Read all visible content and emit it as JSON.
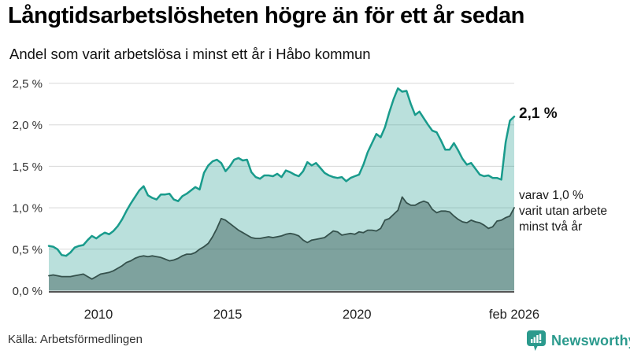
{
  "header": {
    "title": "Långtidsarbetslösheten högre än för ett år sedan",
    "subtitle": "Andel som varit arbetslösa i minst ett år i Håbo kommun"
  },
  "annotations": {
    "end_value_label": "2,1 %",
    "secondary_label_lines": [
      "varav 1,0 %",
      "varit utan arbete",
      "minst två år"
    ]
  },
  "footer": {
    "source": "Källa: Arbetsförmedlingen",
    "brand": "Newsworthy",
    "brand_color": "#2b9a8d"
  },
  "chart_data": {
    "type": "area",
    "title": "Långtidsarbetslösheten högre än för ett år sedan",
    "subtitle": "Andel som varit arbetslösa i minst ett år i Håbo kommun",
    "xlabel": "",
    "ylabel": "",
    "x_unit": "decimal-year, monthly series sampled every 2 months",
    "y_unit": "percent",
    "xlim": [
      2008.083,
      2026.083
    ],
    "ylim": [
      0,
      2.5
    ],
    "grid": "horizontal",
    "grid_color": "#d8d8d8",
    "axis_line_color": "#555555",
    "y_ticks": [
      {
        "value": 0.0,
        "label": "0,0 %"
      },
      {
        "value": 0.5,
        "label": "0,5 %"
      },
      {
        "value": 1.0,
        "label": "1,0 %"
      },
      {
        "value": 1.5,
        "label": "1,5 %"
      },
      {
        "value": 2.0,
        "label": "2,0 %"
      },
      {
        "value": 2.5,
        "label": "2,5 %"
      }
    ],
    "x_ticks": [
      {
        "value": 2010,
        "label": "2010"
      },
      {
        "value": 2015,
        "label": "2015"
      },
      {
        "value": 2020,
        "label": "2020"
      },
      {
        "value": 2026.083,
        "label": "feb 2026"
      }
    ],
    "series": [
      {
        "id": "arbetslosa-minst-ett-ar",
        "name": "Andel som varit arbetslösa i minst ett år",
        "color": "#199b8c",
        "fill": "rgba(26,153,139,0.30)",
        "line_width": 2.5,
        "end_label": "2,1 %",
        "values": [
          0.54,
          0.53,
          0.5,
          0.43,
          0.42,
          0.46,
          0.52,
          0.54,
          0.55,
          0.61,
          0.66,
          0.63,
          0.67,
          0.7,
          0.68,
          0.72,
          0.78,
          0.86,
          0.96,
          1.05,
          1.13,
          1.21,
          1.26,
          1.15,
          1.12,
          1.1,
          1.16,
          1.16,
          1.17,
          1.1,
          1.08,
          1.14,
          1.17,
          1.21,
          1.25,
          1.22,
          1.42,
          1.51,
          1.56,
          1.58,
          1.54,
          1.44,
          1.5,
          1.58,
          1.6,
          1.57,
          1.58,
          1.43,
          1.37,
          1.35,
          1.39,
          1.39,
          1.38,
          1.41,
          1.37,
          1.45,
          1.43,
          1.4,
          1.38,
          1.44,
          1.55,
          1.51,
          1.54,
          1.48,
          1.42,
          1.39,
          1.37,
          1.36,
          1.37,
          1.32,
          1.36,
          1.38,
          1.4,
          1.52,
          1.67,
          1.78,
          1.89,
          1.85,
          1.97,
          2.15,
          2.31,
          2.44,
          2.4,
          2.41,
          2.25,
          2.12,
          2.16,
          2.08,
          2.0,
          1.93,
          1.91,
          1.81,
          1.7,
          1.7,
          1.78,
          1.69,
          1.59,
          1.52,
          1.54,
          1.47,
          1.4,
          1.38,
          1.39,
          1.36,
          1.36,
          1.34,
          1.79,
          2.05,
          2.1
        ]
      },
      {
        "id": "utan-arbete-minst-tva-ar",
        "name": "varav varit utan arbete minst två år",
        "color": "#35514c",
        "fill": "rgba(44,77,72,0.42)",
        "line_width": 1.8,
        "end_label": "varav 1,0 % varit utan arbete minst två år",
        "values": [
          0.18,
          0.19,
          0.18,
          0.17,
          0.17,
          0.17,
          0.18,
          0.19,
          0.2,
          0.17,
          0.14,
          0.17,
          0.2,
          0.21,
          0.22,
          0.24,
          0.27,
          0.3,
          0.34,
          0.36,
          0.39,
          0.41,
          0.42,
          0.41,
          0.42,
          0.41,
          0.4,
          0.38,
          0.36,
          0.37,
          0.39,
          0.42,
          0.44,
          0.44,
          0.46,
          0.5,
          0.53,
          0.57,
          0.65,
          0.75,
          0.87,
          0.85,
          0.81,
          0.77,
          0.73,
          0.7,
          0.67,
          0.64,
          0.63,
          0.63,
          0.64,
          0.65,
          0.64,
          0.65,
          0.66,
          0.68,
          0.69,
          0.68,
          0.66,
          0.61,
          0.58,
          0.61,
          0.62,
          0.63,
          0.64,
          0.68,
          0.72,
          0.71,
          0.67,
          0.68,
          0.69,
          0.68,
          0.71,
          0.7,
          0.73,
          0.73,
          0.72,
          0.75,
          0.85,
          0.87,
          0.92,
          0.97,
          1.13,
          1.06,
          1.03,
          1.03,
          1.06,
          1.08,
          1.06,
          0.98,
          0.94,
          0.96,
          0.96,
          0.95,
          0.9,
          0.86,
          0.83,
          0.82,
          0.85,
          0.83,
          0.82,
          0.79,
          0.75,
          0.77,
          0.84,
          0.85,
          0.88,
          0.9,
          1.0
        ]
      }
    ],
    "legend_position": "none"
  }
}
